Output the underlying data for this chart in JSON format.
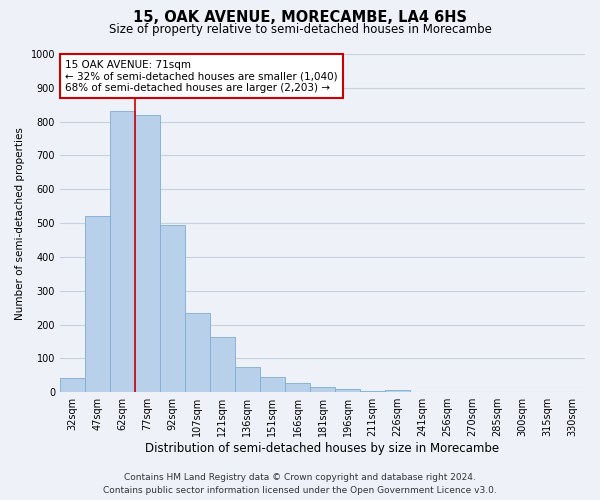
{
  "title": "15, OAK AVENUE, MORECAMBE, LA4 6HS",
  "subtitle": "Size of property relative to semi-detached houses in Morecambe",
  "xlabel": "Distribution of semi-detached houses by size in Morecambe",
  "ylabel": "Number of semi-detached properties",
  "categories": [
    "32sqm",
    "47sqm",
    "62sqm",
    "77sqm",
    "92sqm",
    "107sqm",
    "121sqm",
    "136sqm",
    "151sqm",
    "166sqm",
    "181sqm",
    "196sqm",
    "211sqm",
    "226sqm",
    "241sqm",
    "256sqm",
    "270sqm",
    "285sqm",
    "300sqm",
    "315sqm",
    "330sqm"
  ],
  "values": [
    42,
    520,
    830,
    820,
    495,
    235,
    163,
    75,
    45,
    28,
    15,
    10,
    5,
    8,
    0,
    0,
    0,
    0,
    0,
    0,
    0
  ],
  "bar_color": "#b8d0ea",
  "bar_edge_color": "#7aadd4",
  "red_line_x": 2.5,
  "red_line_color": "#cc0000",
  "annotation_box_color": "#ffffff",
  "annotation_box_edge": "#cc0000",
  "marker_label": "15 OAK AVENUE: 71sqm",
  "annotation_line1": "← 32% of semi-detached houses are smaller (1,040)",
  "annotation_line2": "68% of semi-detached houses are larger (2,203) →",
  "ylim": [
    0,
    1000
  ],
  "yticks": [
    0,
    100,
    200,
    300,
    400,
    500,
    600,
    700,
    800,
    900,
    1000
  ],
  "background_color": "#eef2f8",
  "grid_color": "#c5d0e0",
  "title_fontsize": 10.5,
  "subtitle_fontsize": 8.5,
  "xlabel_fontsize": 8.5,
  "ylabel_fontsize": 7.5,
  "tick_fontsize": 7,
  "annotation_fontsize": 7.5,
  "footer_fontsize": 6.5,
  "footer_line1": "Contains HM Land Registry data © Crown copyright and database right 2024.",
  "footer_line2": "Contains public sector information licensed under the Open Government Licence v3.0."
}
